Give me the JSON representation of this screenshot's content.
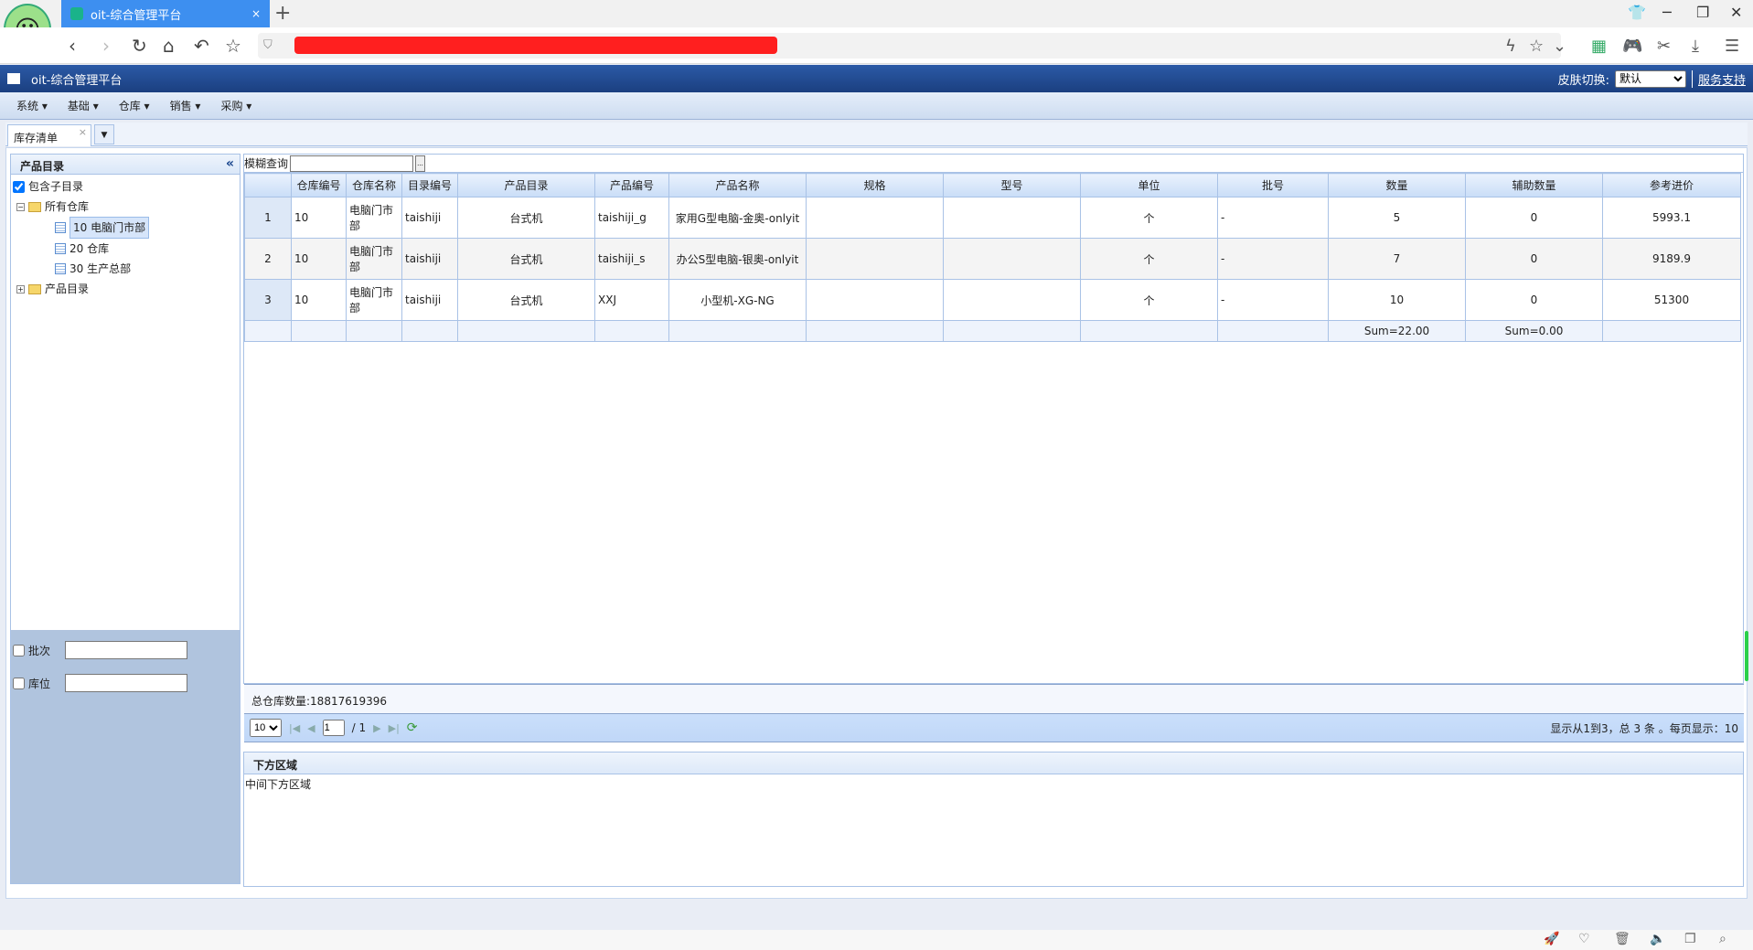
{
  "browser": {
    "tab_title": "oit-综合管理平台",
    "new_tab": "+",
    "tab_close": "×"
  },
  "app": {
    "title": "oit-综合管理平台",
    "skin_label": "皮肤切换:",
    "skin_value": "默认",
    "support_link": "服务支持"
  },
  "menu": [
    {
      "label": "系统"
    },
    {
      "label": "基础"
    },
    {
      "label": "仓库"
    },
    {
      "label": "销售"
    },
    {
      "label": "采购"
    }
  ],
  "tabs": [
    {
      "label": "库存清单",
      "close": "×"
    }
  ],
  "left_panel": {
    "title": "产品目录",
    "collapse": "«",
    "include_sub": "包含子目录",
    "tree": {
      "root": "所有仓库",
      "children": [
        "10 电脑门市部",
        "20 仓库",
        "30 生产总部"
      ],
      "other": "产品目录"
    },
    "filters": [
      {
        "label": "批次",
        "value": ""
      },
      {
        "label": "库位",
        "value": ""
      }
    ]
  },
  "grid": {
    "search_label": "模糊查询",
    "search_value": "",
    "search_btn": "...",
    "columns": [
      "",
      "仓库编号",
      "仓库名称",
      "目录编号",
      "产品目录",
      "产品编号",
      "产品名称",
      "规格",
      "型号",
      "单位",
      "批号",
      "数量",
      "辅助数量",
      "参考进价"
    ],
    "rows": [
      [
        "1",
        "10",
        "电脑门市部",
        "taishiji",
        "台式机",
        "taishiji_g",
        "家用G型电脑-金奥-onlyit",
        "",
        "",
        "个",
        "-",
        "5",
        "0",
        "5993.1"
      ],
      [
        "2",
        "10",
        "电脑门市部",
        "taishiji",
        "台式机",
        "taishiji_s",
        "办公S型电脑-银奥-onlyit",
        "",
        "",
        "个",
        "-",
        "7",
        "0",
        "9189.9"
      ],
      [
        "3",
        "10",
        "电脑门市部",
        "taishiji",
        "台式机",
        "XXJ",
        "小型机-XG-NG",
        "",
        "",
        "个",
        "-",
        "10",
        "0",
        "51300"
      ]
    ],
    "footer": {
      "qty_sum": "Sum=22.00",
      "aux_sum": "Sum=0.00"
    },
    "total": "总仓库数量:18817619396",
    "pager": {
      "page_size": "10",
      "page": "1",
      "of_pages": "/ 1",
      "info": "显示从1到3，总 3 条 。每页显示：10"
    }
  },
  "south": {
    "title": "下方区域",
    "body": "中间下方区域"
  },
  "colors": {
    "header_blue": "#1b3f80",
    "grid_border": "#a9c2e6",
    "left_filter_bg": "#b0c4de"
  }
}
